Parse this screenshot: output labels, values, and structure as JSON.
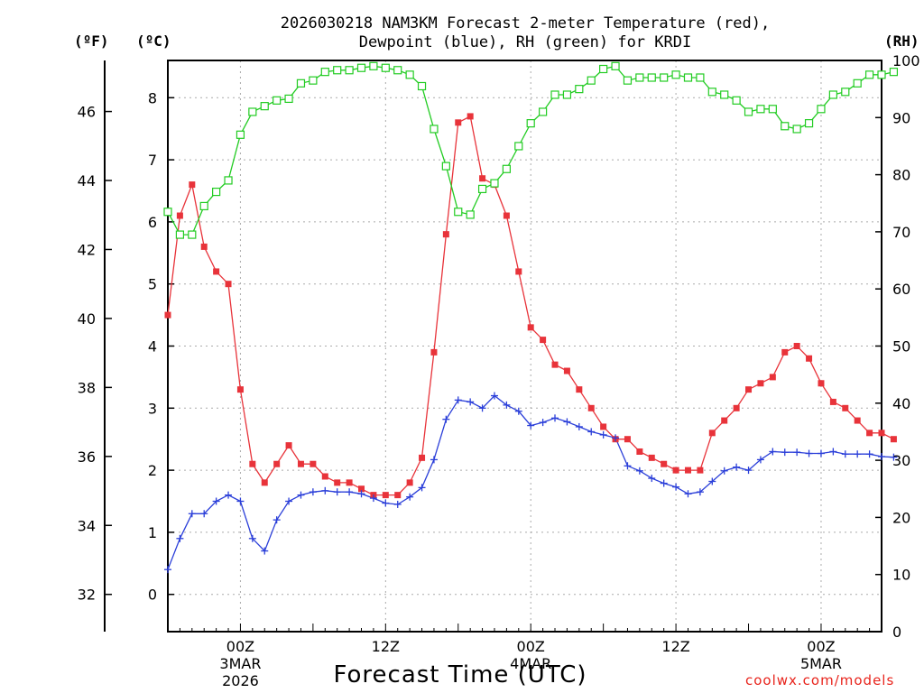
{
  "chart_data": {
    "type": "line",
    "title_line1": "2026030218 NAM3KM Forecast 2-meter Temperature (red),",
    "title_line2": "Dewpoint (blue), RH (green) for KRDI",
    "xlabel": "Forecast Time (UTC)",
    "credit": "coolwx.com/models",
    "unit_f": "(ºF)",
    "unit_c": "(ºC)",
    "unit_rh": "(RH)",
    "x_unit": "hours since 2026-03-02 18Z",
    "xlim": [
      0,
      59
    ],
    "ylim_c": [
      -0.6,
      8.6
    ],
    "ylim_rh": [
      0,
      100
    ],
    "ticks_f": [
      32,
      34,
      36,
      38,
      40,
      42,
      44,
      46
    ],
    "ticks_c": [
      0,
      1,
      2,
      3,
      4,
      5,
      6,
      7,
      8
    ],
    "ticks_rh": [
      0,
      10,
      20,
      30,
      40,
      50,
      60,
      70,
      80,
      90,
      100
    ],
    "x_ticks": [
      {
        "x": 6,
        "label": "00Z",
        "sub1": "3MAR",
        "sub2": "2026"
      },
      {
        "x": 18,
        "label": "12Z",
        "sub1": "",
        "sub2": ""
      },
      {
        "x": 30,
        "label": "00Z",
        "sub1": "4MAR",
        "sub2": ""
      },
      {
        "x": 42,
        "label": "12Z",
        "sub1": "",
        "sub2": ""
      },
      {
        "x": 54,
        "label": "00Z",
        "sub1": "5MAR",
        "sub2": ""
      }
    ],
    "grid": true,
    "colors": {
      "temperature": "#e8333a",
      "dewpoint": "#2b3fd9",
      "rh": "#22cc22"
    },
    "series": [
      {
        "key": "temperature",
        "values": [
          4.5,
          6.1,
          6.6,
          5.6,
          5.2,
          5.0,
          3.3,
          2.1,
          1.8,
          2.1,
          2.4,
          2.1,
          2.1,
          1.9,
          1.8,
          1.8,
          1.7,
          1.6,
          1.6,
          1.6,
          1.8,
          2.2,
          3.9,
          5.8,
          7.6,
          7.7,
          6.7,
          6.6,
          6.1,
          5.2,
          4.3,
          4.1,
          3.7,
          3.6,
          3.3,
          3.0,
          2.7,
          2.5,
          2.5,
          2.3,
          2.2,
          2.1,
          2.0,
          2.0,
          2.0,
          2.6,
          2.8,
          3.0,
          3.3,
          3.4,
          3.5,
          3.9,
          4.0,
          3.8,
          3.4,
          3.1,
          3.0,
          2.8,
          2.6,
          2.6,
          2.5
        ]
      },
      {
        "key": "dewpoint",
        "values": [
          0.4,
          0.9,
          1.3,
          1.3,
          1.5,
          1.6,
          1.5,
          0.9,
          0.7,
          1.2,
          1.5,
          1.6,
          1.65,
          1.67,
          1.65,
          1.65,
          1.62,
          1.55,
          1.47,
          1.45,
          1.57,
          1.72,
          2.17,
          2.82,
          3.13,
          3.1,
          3.0,
          3.2,
          3.05,
          2.95,
          2.72,
          2.77,
          2.84,
          2.78,
          2.7,
          2.62,
          2.57,
          2.52,
          2.07,
          1.99,
          1.87,
          1.79,
          1.73,
          1.62,
          1.65,
          1.82,
          1.99,
          2.05,
          2.0,
          2.17,
          2.3,
          2.29,
          2.29,
          2.27,
          2.27,
          2.3,
          2.26,
          2.26,
          2.26,
          2.22,
          2.21
        ]
      },
      {
        "key": "rh",
        "values": [
          73.5,
          69.5,
          69.5,
          74.5,
          77,
          79,
          87,
          91,
          92,
          93,
          93.3,
          96,
          96.5,
          98,
          98.3,
          98.3,
          98.7,
          99,
          98.7,
          98.3,
          97.5,
          95.5,
          88,
          81.5,
          73.5,
          73,
          77.5,
          78.5,
          81,
          85,
          89,
          91,
          94,
          94,
          95,
          96.5,
          98.5,
          99,
          96.5,
          97,
          97,
          97,
          97.5,
          97,
          97,
          94.5,
          94,
          93,
          91,
          91.5,
          91.5,
          88.5,
          88,
          89,
          91.5,
          94,
          94.5,
          96,
          97.5,
          97.5,
          98
        ]
      }
    ]
  }
}
